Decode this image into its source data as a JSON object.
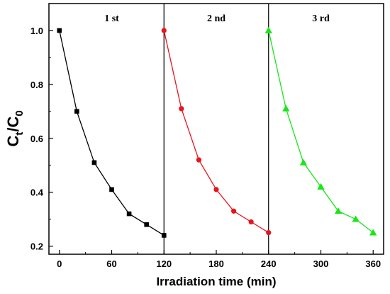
{
  "chart_data": {
    "type": "line",
    "xlabel": "Irradiation time (min)",
    "ylabel_main": "C",
    "ylabel_sub1": "t",
    "ylabel_sep": "/C",
    "ylabel_sub2": "0",
    "xlim": [
      -12,
      372
    ],
    "ylim": [
      0.17,
      1.1
    ],
    "xticks": [
      0,
      60,
      120,
      180,
      240,
      300,
      360
    ],
    "yticks": [
      0.2,
      0.4,
      0.6,
      0.8,
      1.0
    ],
    "ytick_labels": [
      "0.2",
      "0.4",
      "0.6",
      "0.8",
      "1.0"
    ],
    "dividers": [
      120,
      240
    ],
    "grid": false,
    "series": [
      {
        "label": "1 st",
        "label_x": 60,
        "marker": "square",
        "color": "#000000",
        "x": [
          0,
          20,
          40,
          60,
          80,
          100,
          120
        ],
        "y": [
          1.0,
          0.7,
          0.51,
          0.41,
          0.32,
          0.28,
          0.24
        ]
      },
      {
        "label": "2 nd",
        "label_x": 180,
        "marker": "circle",
        "color": "#e8141b",
        "x": [
          120,
          140,
          160,
          180,
          200,
          220,
          240
        ],
        "y": [
          1.0,
          0.71,
          0.52,
          0.41,
          0.33,
          0.29,
          0.25
        ]
      },
      {
        "label": "3 rd",
        "label_x": 300,
        "marker": "triangle",
        "color": "#19e619",
        "x": [
          240,
          260,
          280,
          300,
          320,
          340,
          360
        ],
        "y": [
          1.0,
          0.71,
          0.51,
          0.42,
          0.33,
          0.3,
          0.25
        ]
      }
    ]
  }
}
